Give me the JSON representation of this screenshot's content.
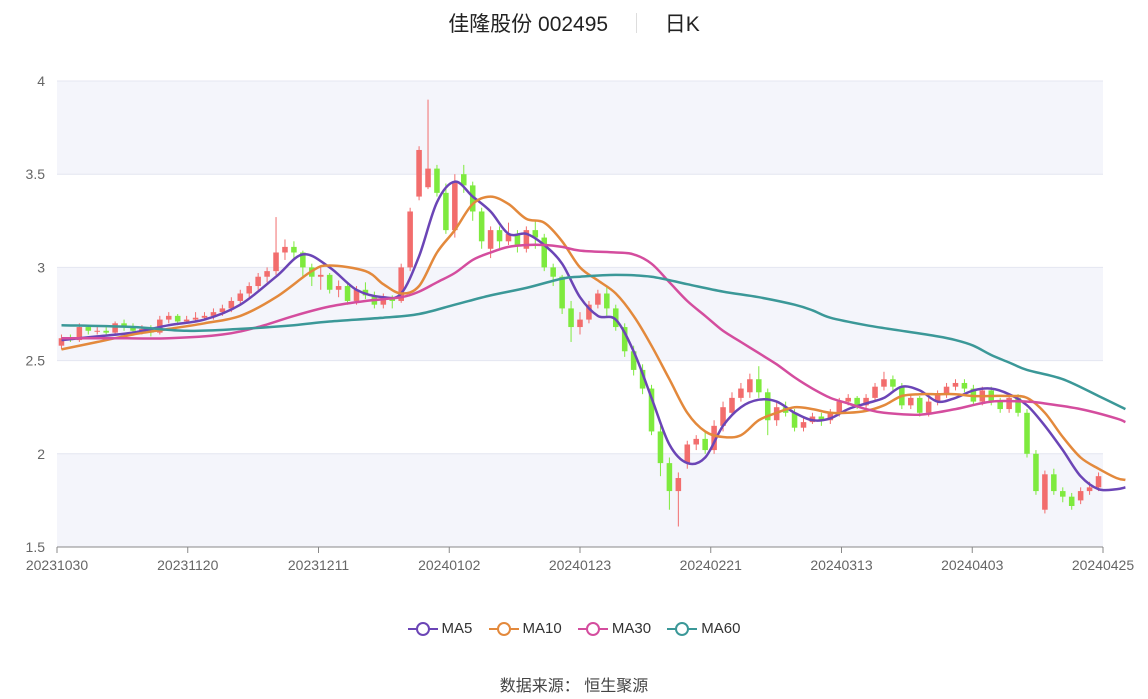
{
  "header": {
    "stock": "佳隆股份 002495",
    "period": "日K"
  },
  "source_label": "数据来源： 恒生聚源",
  "colors": {
    "up": "#f26d6d",
    "down": "#7eea3e",
    "ma5": "#6b45b6",
    "ma10": "#e3893c",
    "ma30": "#d44d9e",
    "ma60": "#3b9898"
  },
  "chart_data": {
    "type": "candlestick",
    "ylim": [
      1.5,
      4
    ],
    "y_ticks": [
      "1.5",
      "2",
      "2.5",
      "3",
      "3.5",
      "4"
    ],
    "x_ticks": [
      "20231030",
      "20231120",
      "20231211",
      "20240102",
      "20240123",
      "20240221",
      "20240313",
      "20240403",
      "20240425"
    ],
    "legend": [
      "MA5",
      "MA10",
      "MA30",
      "MA60"
    ],
    "candles": [
      [
        2.58,
        2.62,
        2.64,
        2.56
      ],
      [
        2.62,
        2.61,
        2.64,
        2.6
      ],
      [
        2.61,
        2.68,
        2.7,
        2.6
      ],
      [
        2.68,
        2.66,
        2.69,
        2.64
      ],
      [
        2.66,
        2.66,
        2.68,
        2.64
      ],
      [
        2.66,
        2.65,
        2.68,
        2.63
      ],
      [
        2.65,
        2.7,
        2.71,
        2.64
      ],
      [
        2.7,
        2.68,
        2.72,
        2.66
      ],
      [
        2.68,
        2.66,
        2.7,
        2.65
      ],
      [
        2.66,
        2.67,
        2.69,
        2.64
      ],
      [
        2.67,
        2.65,
        2.69,
        2.63
      ],
      [
        2.65,
        2.72,
        2.74,
        2.64
      ],
      [
        2.72,
        2.74,
        2.76,
        2.7
      ],
      [
        2.74,
        2.71,
        2.75,
        2.69
      ],
      [
        2.71,
        2.72,
        2.74,
        2.7
      ],
      [
        2.72,
        2.73,
        2.76,
        2.71
      ],
      [
        2.73,
        2.74,
        2.76,
        2.72
      ],
      [
        2.74,
        2.76,
        2.78,
        2.72
      ],
      [
        2.76,
        2.78,
        2.8,
        2.74
      ],
      [
        2.78,
        2.82,
        2.84,
        2.76
      ],
      [
        2.82,
        2.86,
        2.88,
        2.8
      ],
      [
        2.86,
        2.9,
        2.92,
        2.84
      ],
      [
        2.9,
        2.95,
        2.97,
        2.88
      ],
      [
        2.95,
        2.98,
        3.0,
        2.92
      ],
      [
        2.98,
        3.08,
        3.27,
        2.96
      ],
      [
        3.08,
        3.11,
        3.15,
        3.04
      ],
      [
        3.11,
        3.08,
        3.14,
        3.05
      ],
      [
        3.08,
        3.0,
        3.09,
        2.94
      ],
      [
        3.0,
        2.95,
        3.02,
        2.9
      ],
      [
        2.95,
        2.96,
        3.0,
        2.88
      ],
      [
        2.96,
        2.88,
        2.97,
        2.86
      ],
      [
        2.88,
        2.9,
        2.93,
        2.84
      ],
      [
        2.9,
        2.82,
        2.91,
        2.8
      ],
      [
        2.82,
        2.88,
        2.9,
        2.8
      ],
      [
        2.88,
        2.85,
        2.92,
        2.83
      ],
      [
        2.85,
        2.8,
        2.87,
        2.78
      ],
      [
        2.8,
        2.84,
        2.86,
        2.78
      ],
      [
        2.84,
        2.82,
        2.85,
        2.78
      ],
      [
        2.82,
        3.0,
        3.02,
        2.81
      ],
      [
        3.0,
        3.3,
        3.32,
        2.98
      ],
      [
        3.38,
        3.63,
        3.65,
        3.36
      ],
      [
        3.43,
        3.53,
        3.9,
        3.42
      ],
      [
        3.53,
        3.4,
        3.55,
        3.38
      ],
      [
        3.4,
        3.2,
        3.45,
        3.18
      ],
      [
        3.2,
        3.46,
        3.5,
        3.16
      ],
      [
        3.5,
        3.44,
        3.55,
        3.4
      ],
      [
        3.44,
        3.3,
        3.46,
        3.25
      ],
      [
        3.3,
        3.14,
        3.32,
        3.1
      ],
      [
        3.1,
        3.2,
        3.22,
        3.05
      ],
      [
        3.2,
        3.14,
        3.22,
        3.1
      ],
      [
        3.14,
        3.18,
        3.24,
        3.12
      ],
      [
        3.18,
        3.12,
        3.2,
        3.08
      ],
      [
        3.1,
        3.2,
        3.22,
        3.08
      ],
      [
        3.2,
        3.16,
        3.25,
        3.1
      ],
      [
        3.16,
        3.0,
        3.18,
        2.98
      ],
      [
        3.0,
        2.95,
        3.02,
        2.9
      ],
      [
        2.95,
        2.78,
        2.96,
        2.75
      ],
      [
        2.78,
        2.68,
        2.82,
        2.6
      ],
      [
        2.68,
        2.72,
        2.76,
        2.64
      ],
      [
        2.72,
        2.8,
        2.82,
        2.7
      ],
      [
        2.8,
        2.86,
        2.88,
        2.78
      ],
      [
        2.86,
        2.78,
        2.9,
        2.74
      ],
      [
        2.78,
        2.68,
        2.8,
        2.66
      ],
      [
        2.68,
        2.55,
        2.7,
        2.52
      ],
      [
        2.55,
        2.45,
        2.58,
        2.42
      ],
      [
        2.45,
        2.35,
        2.48,
        2.32
      ],
      [
        2.35,
        2.12,
        2.37,
        2.1
      ],
      [
        2.12,
        1.95,
        2.15,
        1.88
      ],
      [
        1.95,
        1.8,
        1.98,
        1.7
      ],
      [
        1.8,
        1.87,
        1.9,
        1.61
      ],
      [
        1.95,
        2.05,
        2.07,
        1.92
      ],
      [
        2.05,
        2.08,
        2.1,
        2.02
      ],
      [
        2.08,
        2.02,
        2.12,
        2.0
      ],
      [
        2.02,
        2.15,
        2.18,
        2.0
      ],
      [
        2.15,
        2.25,
        2.28,
        2.12
      ],
      [
        2.22,
        2.3,
        2.33,
        2.2
      ],
      [
        2.3,
        2.35,
        2.38,
        2.28
      ],
      [
        2.33,
        2.4,
        2.43,
        2.3
      ],
      [
        2.4,
        2.33,
        2.47,
        2.3
      ],
      [
        2.33,
        2.18,
        2.35,
        2.1
      ],
      [
        2.18,
        2.25,
        2.28,
        2.15
      ],
      [
        2.25,
        2.22,
        2.28,
        2.2
      ],
      [
        2.22,
        2.14,
        2.24,
        2.12
      ],
      [
        2.14,
        2.17,
        2.2,
        2.12
      ],
      [
        2.17,
        2.2,
        2.22,
        2.16
      ],
      [
        2.2,
        2.18,
        2.22,
        2.15
      ],
      [
        2.18,
        2.22,
        2.24,
        2.16
      ],
      [
        2.22,
        2.28,
        2.3,
        2.2
      ],
      [
        2.28,
        2.3,
        2.32,
        2.26
      ],
      [
        2.3,
        2.26,
        2.31,
        2.24
      ],
      [
        2.26,
        2.3,
        2.32,
        2.24
      ],
      [
        2.3,
        2.36,
        2.38,
        2.28
      ],
      [
        2.36,
        2.4,
        2.44,
        2.34
      ],
      [
        2.4,
        2.36,
        2.42,
        2.34
      ],
      [
        2.36,
        2.26,
        2.38,
        2.24
      ],
      [
        2.26,
        2.3,
        2.32,
        2.24
      ],
      [
        2.3,
        2.22,
        2.31,
        2.2
      ],
      [
        2.22,
        2.28,
        2.3,
        2.2
      ],
      [
        2.28,
        2.32,
        2.34,
        2.26
      ],
      [
        2.32,
        2.36,
        2.38,
        2.3
      ],
      [
        2.36,
        2.38,
        2.4,
        2.34
      ],
      [
        2.38,
        2.35,
        2.4,
        2.33
      ],
      [
        2.35,
        2.28,
        2.37,
        2.26
      ],
      [
        2.28,
        2.34,
        2.36,
        2.26
      ],
      [
        2.34,
        2.28,
        2.36,
        2.26
      ],
      [
        2.28,
        2.24,
        2.3,
        2.22
      ],
      [
        2.24,
        2.3,
        2.32,
        2.22
      ],
      [
        2.3,
        2.22,
        2.32,
        2.2
      ],
      [
        2.22,
        2.0,
        2.24,
        1.98
      ],
      [
        2.0,
        1.8,
        2.02,
        1.78
      ],
      [
        1.7,
        1.89,
        1.91,
        1.68
      ],
      [
        1.89,
        1.8,
        1.92,
        1.78
      ],
      [
        1.8,
        1.77,
        1.82,
        1.74
      ],
      [
        1.77,
        1.72,
        1.79,
        1.7
      ],
      [
        1.75,
        1.8,
        1.82,
        1.73
      ],
      [
        1.8,
        1.82,
        1.85,
        1.78
      ],
      [
        1.82,
        1.88,
        1.9,
        1.8
      ]
    ],
    "ma": {
      "MA5": [
        [
          0,
          2.61
        ],
        [
          4,
          2.63
        ],
        [
          8,
          2.65
        ],
        [
          12,
          2.69
        ],
        [
          16,
          2.72
        ],
        [
          20,
          2.8
        ],
        [
          24,
          2.95
        ],
        [
          27,
          3.07
        ],
        [
          30,
          3.0
        ],
        [
          33,
          2.88
        ],
        [
          36,
          2.84
        ],
        [
          38,
          2.86
        ],
        [
          40,
          3.06
        ],
        [
          42,
          3.35
        ],
        [
          44,
          3.46
        ],
        [
          46,
          3.38
        ],
        [
          48,
          3.3
        ],
        [
          50,
          3.18
        ],
        [
          52,
          3.18
        ],
        [
          54,
          3.12
        ],
        [
          56,
          3.02
        ],
        [
          58,
          2.84
        ],
        [
          60,
          2.74
        ],
        [
          62,
          2.72
        ],
        [
          64,
          2.55
        ],
        [
          66,
          2.3
        ],
        [
          68,
          2.05
        ],
        [
          70,
          1.95
        ],
        [
          72,
          1.98
        ],
        [
          74,
          2.15
        ],
        [
          76,
          2.25
        ],
        [
          78,
          2.29
        ],
        [
          80,
          2.28
        ],
        [
          82,
          2.22
        ],
        [
          84,
          2.18
        ],
        [
          86,
          2.19
        ],
        [
          88,
          2.24
        ],
        [
          90,
          2.27
        ],
        [
          92,
          2.3
        ],
        [
          94,
          2.36
        ],
        [
          96,
          2.34
        ],
        [
          98,
          2.28
        ],
        [
          100,
          2.3
        ],
        [
          102,
          2.34
        ],
        [
          104,
          2.35
        ],
        [
          106,
          2.32
        ],
        [
          108,
          2.26
        ],
        [
          110,
          2.15
        ],
        [
          112,
          2.02
        ],
        [
          114,
          1.88
        ],
        [
          116,
          1.81
        ],
        [
          118,
          1.81
        ],
        [
          119,
          1.82
        ]
      ],
      "MA10": [
        [
          0,
          2.56
        ],
        [
          4,
          2.6
        ],
        [
          8,
          2.64
        ],
        [
          12,
          2.67
        ],
        [
          16,
          2.7
        ],
        [
          20,
          2.74
        ],
        [
          24,
          2.84
        ],
        [
          28,
          2.98
        ],
        [
          30,
          3.01
        ],
        [
          34,
          2.98
        ],
        [
          36,
          2.91
        ],
        [
          38,
          2.86
        ],
        [
          40,
          2.9
        ],
        [
          42,
          3.08
        ],
        [
          44,
          3.2
        ],
        [
          46,
          3.34
        ],
        [
          48,
          3.38
        ],
        [
          50,
          3.34
        ],
        [
          52,
          3.26
        ],
        [
          54,
          3.24
        ],
        [
          56,
          3.14
        ],
        [
          58,
          3.0
        ],
        [
          60,
          2.93
        ],
        [
          62,
          2.86
        ],
        [
          64,
          2.74
        ],
        [
          66,
          2.58
        ],
        [
          68,
          2.4
        ],
        [
          70,
          2.22
        ],
        [
          72,
          2.12
        ],
        [
          74,
          2.09
        ],
        [
          76,
          2.1
        ],
        [
          78,
          2.18
        ],
        [
          80,
          2.22
        ],
        [
          82,
          2.25
        ],
        [
          84,
          2.24
        ],
        [
          86,
          2.22
        ],
        [
          88,
          2.22
        ],
        [
          90,
          2.23
        ],
        [
          92,
          2.26
        ],
        [
          94,
          2.31
        ],
        [
          96,
          2.32
        ],
        [
          98,
          2.32
        ],
        [
          100,
          2.32
        ],
        [
          102,
          2.31
        ],
        [
          104,
          2.31
        ],
        [
          106,
          2.31
        ],
        [
          108,
          2.3
        ],
        [
          110,
          2.22
        ],
        [
          112,
          2.09
        ],
        [
          114,
          1.98
        ],
        [
          116,
          1.92
        ],
        [
          118,
          1.87
        ],
        [
          119,
          1.86
        ]
      ],
      "MA30": [
        [
          0,
          2.62
        ],
        [
          6,
          2.62
        ],
        [
          12,
          2.62
        ],
        [
          18,
          2.64
        ],
        [
          22,
          2.68
        ],
        [
          26,
          2.74
        ],
        [
          30,
          2.79
        ],
        [
          34,
          2.82
        ],
        [
          38,
          2.84
        ],
        [
          40,
          2.87
        ],
        [
          42,
          2.92
        ],
        [
          44,
          2.97
        ],
        [
          46,
          3.04
        ],
        [
          48,
          3.08
        ],
        [
          50,
          3.11
        ],
        [
          52,
          3.12
        ],
        [
          54,
          3.12
        ],
        [
          56,
          3.11
        ],
        [
          58,
          3.09
        ],
        [
          62,
          3.08
        ],
        [
          64,
          3.07
        ],
        [
          66,
          3.02
        ],
        [
          68,
          2.92
        ],
        [
          70,
          2.82
        ],
        [
          72,
          2.74
        ],
        [
          74,
          2.66
        ],
        [
          76,
          2.6
        ],
        [
          78,
          2.54
        ],
        [
          80,
          2.48
        ],
        [
          82,
          2.41
        ],
        [
          84,
          2.35
        ],
        [
          86,
          2.3
        ],
        [
          88,
          2.27
        ],
        [
          90,
          2.24
        ],
        [
          92,
          2.22
        ],
        [
          96,
          2.21
        ],
        [
          100,
          2.24
        ],
        [
          104,
          2.28
        ],
        [
          108,
          2.28
        ],
        [
          110,
          2.27
        ],
        [
          114,
          2.24
        ],
        [
          118,
          2.19
        ],
        [
          119,
          2.17
        ]
      ],
      "MA60": [
        [
          0,
          2.69
        ],
        [
          8,
          2.68
        ],
        [
          14,
          2.66
        ],
        [
          20,
          2.67
        ],
        [
          26,
          2.69
        ],
        [
          30,
          2.71
        ],
        [
          36,
          2.73
        ],
        [
          40,
          2.75
        ],
        [
          44,
          2.8
        ],
        [
          48,
          2.85
        ],
        [
          52,
          2.89
        ],
        [
          56,
          2.94
        ],
        [
          58,
          2.95
        ],
        [
          62,
          2.96
        ],
        [
          66,
          2.95
        ],
        [
          70,
          2.91
        ],
        [
          74,
          2.87
        ],
        [
          78,
          2.84
        ],
        [
          82,
          2.8
        ],
        [
          84,
          2.77
        ],
        [
          86,
          2.73
        ],
        [
          90,
          2.69
        ],
        [
          94,
          2.66
        ],
        [
          98,
          2.63
        ],
        [
          100,
          2.61
        ],
        [
          102,
          2.58
        ],
        [
          104,
          2.53
        ],
        [
          106,
          2.49
        ],
        [
          108,
          2.45
        ],
        [
          112,
          2.4
        ],
        [
          116,
          2.31
        ],
        [
          119,
          2.24
        ]
      ]
    }
  }
}
